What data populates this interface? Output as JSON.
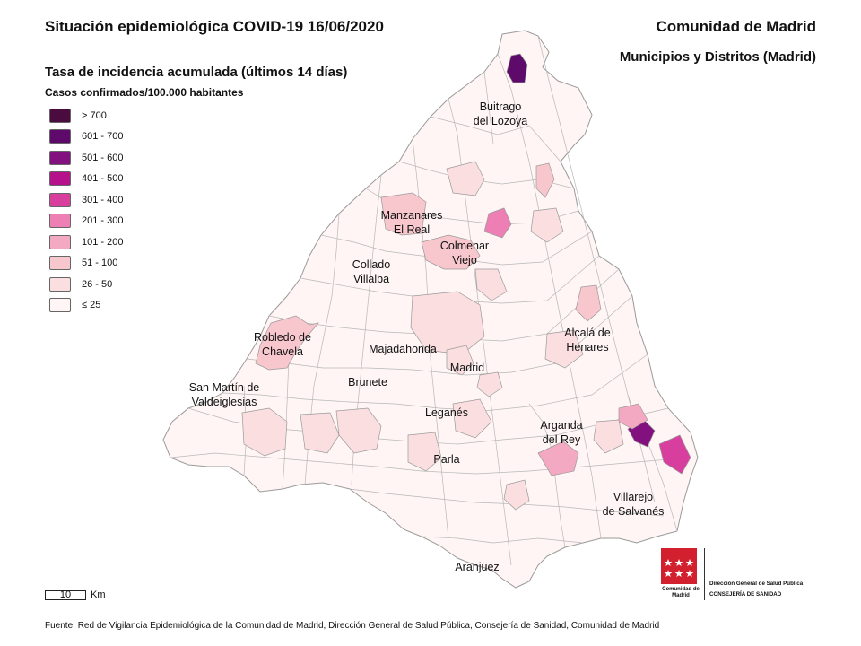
{
  "header": {
    "title": "Situación epidemiológica COVID-19  16/06/2020",
    "region": "Comunidad de Madrid",
    "subregion": "Municipios y Distritos (Madrid)"
  },
  "legend": {
    "title": "Tasa de incidencia acumulada (últimos 14 días)",
    "subtitle": "Casos confirmados/100.000 habitantes",
    "items": [
      {
        "label": "> 700",
        "color": "#4a0b3e"
      },
      {
        "label": "601 - 700",
        "color": "#5e0a6b"
      },
      {
        "label": "501 - 600",
        "color": "#82107e"
      },
      {
        "label": "401 - 500",
        "color": "#b5118b"
      },
      {
        "label": "301 - 400",
        "color": "#d83e9e"
      },
      {
        "label": "201 - 300",
        "color": "#ed7fb4"
      },
      {
        "label": "101 - 200",
        "color": "#f3a9c2"
      },
      {
        "label": "51 - 100",
        "color": "#f7c7cd"
      },
      {
        "label": "26 - 50",
        "color": "#fbdfe0"
      },
      {
        "label": "≤ 25",
        "color": "#fef5f4"
      }
    ]
  },
  "map": {
    "outline_color": "#9a9a9a",
    "cities": [
      {
        "name": "Buitrago\ndel Lozoya"
      },
      {
        "name": "Manzanares\nEl Real"
      },
      {
        "name": "Colmenar\nViejo"
      },
      {
        "name": "Collado\nVillalba"
      },
      {
        "name": "Robledo de\nChavela"
      },
      {
        "name": "Majadahonda"
      },
      {
        "name": "Madrid"
      },
      {
        "name": "Alcalá de\nHenares"
      },
      {
        "name": "San Martín de\nValdeiglesias"
      },
      {
        "name": "Brunete"
      },
      {
        "name": "Leganés"
      },
      {
        "name": "Arganda\ndel Rey"
      },
      {
        "name": "Parla"
      },
      {
        "name": "Villarejo\nde Salvanés"
      },
      {
        "name": "Aranjuez"
      }
    ]
  },
  "scale": {
    "value": "10",
    "unit": "Km"
  },
  "logo": {
    "name": "Comunidad de Madrid",
    "direccion": "Dirección General de Salud Pública",
    "consejeria": "CONSEJERÍA DE SANIDAD"
  },
  "source": "Fuente: Red de Vigilancia Epidemiológica de la Comunidad de Madrid, Dirección General de Salud Pública, Consejería de Sanidad, Comunidad de Madrid"
}
